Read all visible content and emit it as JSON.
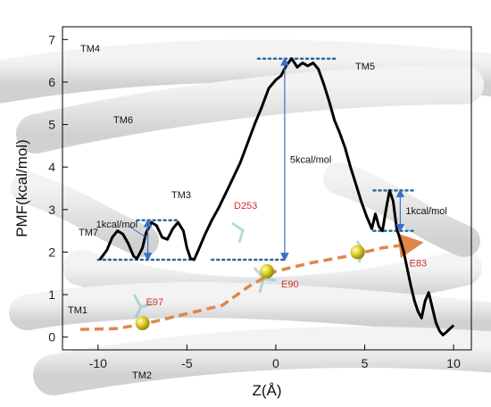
{
  "chart_data": {
    "type": "line",
    "xlabel": "Z(Å)",
    "ylabel": "PMF(kcal/mol)",
    "xlim": [
      -12,
      11
    ],
    "ylim": [
      -0.3,
      7.3
    ],
    "xticks": [
      -10,
      -5,
      0,
      5,
      10
    ],
    "xtick_labels": [
      "-10",
      "-5",
      "0",
      "5",
      "10"
    ],
    "yticks": [
      0,
      1,
      2,
      3,
      4,
      5,
      6,
      7
    ],
    "ytick_labels": [
      "0",
      "1",
      "2",
      "3",
      "4",
      "5",
      "6",
      "7"
    ],
    "grid": false,
    "series": [
      {
        "color": "#000000",
        "x": [
          -9.9,
          -9.5,
          -9.2,
          -8.9,
          -8.6,
          -8.3,
          -8.0,
          -7.8,
          -7.5,
          -7.3,
          -7.0,
          -6.7,
          -6.4,
          -6.1,
          -5.8,
          -5.5,
          -5.2,
          -5.0,
          -4.8,
          -4.6,
          -4.4,
          -4.2,
          -4.0,
          -3.6,
          -3.2,
          -2.8,
          -2.4,
          -2.0,
          -1.6,
          -1.2,
          -0.8,
          -0.4,
          0.0,
          0.3,
          0.6,
          0.9,
          1.2,
          1.5,
          1.8,
          2.1,
          2.4,
          2.7,
          3.0,
          3.3,
          3.6,
          3.9,
          4.2,
          4.5,
          4.8,
          5.1,
          5.4,
          5.6,
          5.8,
          6.0,
          6.2,
          6.4,
          6.6,
          6.8,
          7.0,
          7.2,
          7.4,
          7.6,
          7.8,
          8.0,
          8.2,
          8.4,
          8.6,
          8.8,
          9.0,
          9.2,
          9.4,
          9.6,
          9.8,
          10.0
        ],
        "y": [
          1.82,
          2.05,
          2.35,
          2.5,
          2.42,
          2.2,
          1.9,
          1.85,
          2.1,
          2.45,
          2.7,
          2.62,
          2.35,
          2.3,
          2.55,
          2.7,
          2.5,
          2.1,
          1.85,
          1.82,
          2.0,
          2.2,
          2.4,
          2.75,
          3.05,
          3.4,
          3.75,
          4.1,
          4.55,
          5.0,
          5.4,
          5.85,
          6.05,
          6.15,
          6.4,
          6.55,
          6.35,
          6.45,
          6.38,
          6.45,
          6.3,
          5.95,
          5.55,
          5.1,
          4.8,
          4.45,
          4.0,
          3.6,
          3.2,
          2.85,
          2.55,
          2.9,
          2.6,
          2.5,
          3.0,
          3.45,
          3.2,
          2.55,
          2.3,
          2.0,
          1.6,
          1.2,
          0.85,
          0.6,
          0.45,
          0.85,
          1.05,
          0.7,
          0.35,
          0.15,
          0.05,
          0.12,
          0.2,
          0.28
        ]
      }
    ],
    "reference_levels": [
      {
        "x_range": [
          -10.0,
          -4.8
        ],
        "y": 1.82
      },
      {
        "x_range": [
          -3.6,
          0.6
        ],
        "y": 1.82
      },
      {
        "x_range": [
          -7.8,
          -5.5
        ],
        "y": 2.75
      },
      {
        "x_range": [
          -1.0,
          3.4
        ],
        "y": 6.55
      },
      {
        "x_range": [
          5.5,
          7.9
        ],
        "y": 3.45
      },
      {
        "x_range": [
          5.5,
          7.9
        ],
        "y": 2.5
      }
    ],
    "barriers": [
      {
        "label": "1kcal/mol",
        "x": -7.2,
        "y_from": 1.82,
        "y_to": 2.75
      },
      {
        "label": "5kcal/mol",
        "x": 0.5,
        "y_from": 1.82,
        "y_to": 6.55
      },
      {
        "label": "1kcal/mol",
        "x": 7.0,
        "y_from": 2.5,
        "y_to": 3.45
      }
    ],
    "residues": [
      {
        "label": "E97",
        "x": -7.5,
        "y": 0.33
      },
      {
        "label": "E90",
        "x": -0.5,
        "y": 1.55
      },
      {
        "label": "E83",
        "x": 4.6,
        "y": 2.0
      }
    ],
    "pathway": {
      "x": [
        -11,
        -9,
        -7.5,
        -5,
        -3,
        -1.5,
        0,
        2,
        4,
        6,
        7.8
      ],
      "y": [
        0.18,
        0.2,
        0.3,
        0.55,
        0.75,
        1.2,
        1.55,
        1.75,
        1.9,
        2.1,
        2.2
      ]
    },
    "annotations": {
      "helices": [
        "TM4",
        "TM5",
        "TM6",
        "TM3",
        "TM7",
        "TM1",
        "TM2"
      ],
      "d253": "D253"
    }
  }
}
